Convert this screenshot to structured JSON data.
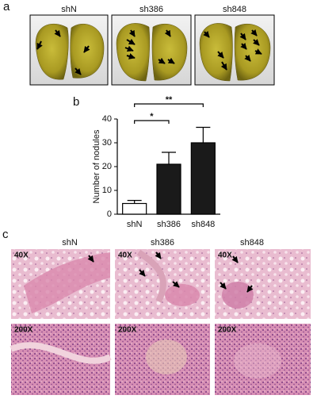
{
  "panel_labels": [
    "a",
    "b",
    "c"
  ],
  "panel_a": {
    "titles": [
      "shN",
      "sh386",
      "sh848"
    ]
  },
  "chart_data": {
    "type": "bar",
    "ylabel": "Number of nodules",
    "categories": [
      "shN",
      "sh386",
      "sh848"
    ],
    "values": [
      4.5,
      21,
      30
    ],
    "errors": [
      1.3,
      5,
      6.5
    ],
    "colors": [
      "#ffffff",
      "#1a1a1a",
      "#1a1a1a"
    ],
    "ylim": [
      0,
      40
    ],
    "yticks": [
      0,
      10,
      20,
      30,
      40
    ],
    "annotations": [
      "*",
      "**"
    ]
  },
  "panel_c": {
    "titles": [
      "shN",
      "sh386",
      "sh848"
    ],
    "magnifications": [
      "40X",
      "200X"
    ]
  }
}
